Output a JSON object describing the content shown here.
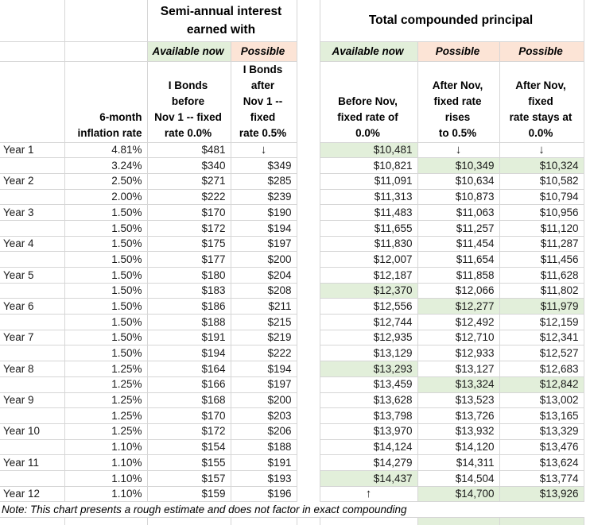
{
  "titles": {
    "interest": "Semi-annual interest\nearned with",
    "principal": "Total compounded principal"
  },
  "subheaders": {
    "available": "Available now",
    "possible": "Possible"
  },
  "col_headers": {
    "inflation": "6-month\ninflation rate",
    "int_before": "I Bonds before\nNov 1 -- fixed\nrate 0.0%",
    "int_after": "I Bonds after\nNov 1 -- fixed\nrate 0.5%",
    "p_before": "Before Nov,\nfixed rate of\n0.0%",
    "p_rises": "After Nov,\nfixed rate rises\nto 0.5%",
    "p_stays": "After Nov, fixed\nrate stays at\n0.0%"
  },
  "glyphs": {
    "down_arrow": "↓",
    "up_arrow": "↑"
  },
  "colors": {
    "highlight_green": "#e2efda",
    "highlight_pink": "#fce4d6",
    "gridline": "#d6d6d6"
  },
  "note": "Note: This chart presents a rough estimate and does not factor in exact compounding",
  "rows": [
    {
      "year": "Year 1",
      "inflation": "4.81%",
      "int_before": "$481",
      "int_after": "↓",
      "p_before": "$10,481",
      "p_rises": "↓",
      "p_stays": "↓",
      "hl": [
        "p_before"
      ]
    },
    {
      "year": "",
      "inflation": "3.24%",
      "int_before": "$340",
      "int_after": "$349",
      "p_before": "$10,821",
      "p_rises": "$10,349",
      "p_stays": "$10,324",
      "hl": [
        "p_rises",
        "p_stays"
      ]
    },
    {
      "year": "Year 2",
      "inflation": "2.50%",
      "int_before": "$271",
      "int_after": "$285",
      "p_before": "$11,091",
      "p_rises": "$10,634",
      "p_stays": "$10,582",
      "hl": []
    },
    {
      "year": "",
      "inflation": "2.00%",
      "int_before": "$222",
      "int_after": "$239",
      "p_before": "$11,313",
      "p_rises": "$10,873",
      "p_stays": "$10,794",
      "hl": []
    },
    {
      "year": "Year 3",
      "inflation": "1.50%",
      "int_before": "$170",
      "int_after": "$190",
      "p_before": "$11,483",
      "p_rises": "$11,063",
      "p_stays": "$10,956",
      "hl": []
    },
    {
      "year": "",
      "inflation": "1.50%",
      "int_before": "$172",
      "int_after": "$194",
      "p_before": "$11,655",
      "p_rises": "$11,257",
      "p_stays": "$11,120",
      "hl": []
    },
    {
      "year": "Year 4",
      "inflation": "1.50%",
      "int_before": "$175",
      "int_after": "$197",
      "p_before": "$11,830",
      "p_rises": "$11,454",
      "p_stays": "$11,287",
      "hl": []
    },
    {
      "year": "",
      "inflation": "1.50%",
      "int_before": "$177",
      "int_after": "$200",
      "p_before": "$12,007",
      "p_rises": "$11,654",
      "p_stays": "$11,456",
      "hl": []
    },
    {
      "year": "Year 5",
      "inflation": "1.50%",
      "int_before": "$180",
      "int_after": "$204",
      "p_before": "$12,187",
      "p_rises": "$11,858",
      "p_stays": "$11,628",
      "hl": []
    },
    {
      "year": "",
      "inflation": "1.50%",
      "int_before": "$183",
      "int_after": "$208",
      "p_before": "$12,370",
      "p_rises": "$12,066",
      "p_stays": "$11,802",
      "hl": [
        "p_before"
      ]
    },
    {
      "year": "Year 6",
      "inflation": "1.50%",
      "int_before": "$186",
      "int_after": "$211",
      "p_before": "$12,556",
      "p_rises": "$12,277",
      "p_stays": "$11,979",
      "hl": [
        "p_rises",
        "p_stays"
      ]
    },
    {
      "year": "",
      "inflation": "1.50%",
      "int_before": "$188",
      "int_after": "$215",
      "p_before": "$12,744",
      "p_rises": "$12,492",
      "p_stays": "$12,159",
      "hl": []
    },
    {
      "year": "Year 7",
      "inflation": "1.50%",
      "int_before": "$191",
      "int_after": "$219",
      "p_before": "$12,935",
      "p_rises": "$12,710",
      "p_stays": "$12,341",
      "hl": []
    },
    {
      "year": "",
      "inflation": "1.50%",
      "int_before": "$194",
      "int_after": "$222",
      "p_before": "$13,129",
      "p_rises": "$12,933",
      "p_stays": "$12,527",
      "hl": []
    },
    {
      "year": "Year 8",
      "inflation": "1.25%",
      "int_before": "$164",
      "int_after": "$194",
      "p_before": "$13,293",
      "p_rises": "$13,127",
      "p_stays": "$12,683",
      "hl": [
        "p_before"
      ]
    },
    {
      "year": "",
      "inflation": "1.25%",
      "int_before": "$166",
      "int_after": "$197",
      "p_before": "$13,459",
      "p_rises": "$13,324",
      "p_stays": "$12,842",
      "hl": [
        "p_rises",
        "p_stays"
      ]
    },
    {
      "year": "Year 9",
      "inflation": "1.25%",
      "int_before": "$168",
      "int_after": "$200",
      "p_before": "$13,628",
      "p_rises": "$13,523",
      "p_stays": "$13,002",
      "hl": []
    },
    {
      "year": "",
      "inflation": "1.25%",
      "int_before": "$170",
      "int_after": "$203",
      "p_before": "$13,798",
      "p_rises": "$13,726",
      "p_stays": "$13,165",
      "hl": []
    },
    {
      "year": "Year 10",
      "inflation": "1.25%",
      "int_before": "$172",
      "int_after": "$206",
      "p_before": "$13,970",
      "p_rises": "$13,932",
      "p_stays": "$13,329",
      "hl": []
    },
    {
      "year": "",
      "inflation": "1.10%",
      "int_before": "$154",
      "int_after": "$188",
      "p_before": "$14,124",
      "p_rises": "$14,120",
      "p_stays": "$13,476",
      "hl": []
    },
    {
      "year": "Year 11",
      "inflation": "1.10%",
      "int_before": "$155",
      "int_after": "$191",
      "p_before": "$14,279",
      "p_rises": "$14,311",
      "p_stays": "$13,624",
      "hl": []
    },
    {
      "year": "",
      "inflation": "1.10%",
      "int_before": "$157",
      "int_after": "$193",
      "p_before": "$14,437",
      "p_rises": "$14,504",
      "p_stays": "$13,774",
      "hl": [
        "p_before"
      ]
    },
    {
      "year": "Year 12",
      "inflation": "1.10%",
      "int_before": "$159",
      "int_after": "$196",
      "p_before": "↑",
      "p_rises": "$14,700",
      "p_stays": "$13,926",
      "hl": [
        "p_rises",
        "p_stays"
      ]
    }
  ]
}
